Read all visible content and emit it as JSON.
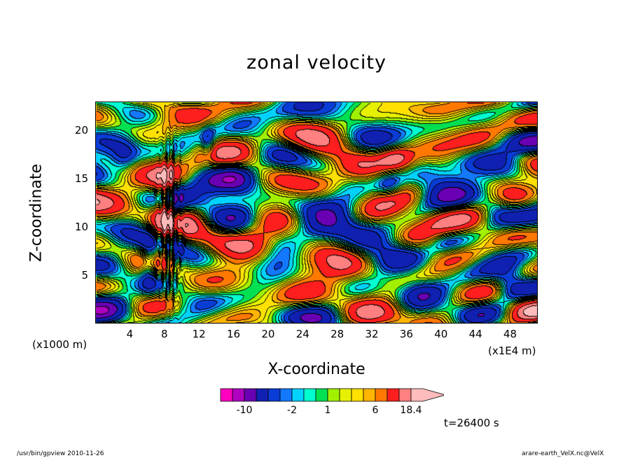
{
  "chart_data": {
    "type": "heatmap",
    "title": "zonal velocity",
    "xlabel": "X-coordinate",
    "ylabel": "Z-coordinate",
    "x_unit_left": "(x1000 m)",
    "x_unit_right": "(x1E4 m)",
    "x_ticks": [
      "4",
      "8",
      "12",
      "16",
      "20",
      "24",
      "28",
      "32",
      "36",
      "40",
      "44",
      "48"
    ],
    "x_tick_values": [
      4,
      8,
      12,
      16,
      20,
      24,
      28,
      32,
      36,
      40,
      44,
      48
    ],
    "xlim": [
      0,
      51.2
    ],
    "y_ticks": [
      "5",
      "10",
      "15",
      "20"
    ],
    "y_tick_values": [
      5,
      10,
      15,
      20
    ],
    "ylim": [
      0,
      23
    ],
    "colorbar": {
      "labels": [
        "-10",
        "-2",
        "1",
        "6",
        "18.4"
      ],
      "label_values": [
        -10,
        -2,
        1,
        6,
        18.4
      ],
      "levels": [
        -18,
        -14,
        -10,
        -6,
        -4,
        -3,
        -2,
        -1,
        0,
        1,
        2,
        3,
        4,
        6,
        10,
        14,
        18.4
      ],
      "colors": [
        "#ff00c0",
        "#b000c0",
        "#6a00b4",
        "#1020b0",
        "#0a3cd6",
        "#1478ff",
        "#00d2ff",
        "#00ffd0",
        "#00e050",
        "#a0f000",
        "#e6f000",
        "#ffe000",
        "#ffb400",
        "#ff7800",
        "#ff1e1e",
        "#ff8080",
        "#ffbcbc"
      ]
    },
    "annotation": "t=26400 s"
  },
  "footer": {
    "left": "/usr/bin/gpview   2010-11-26",
    "right": "arare-earth_VelX.nc@VelX"
  }
}
